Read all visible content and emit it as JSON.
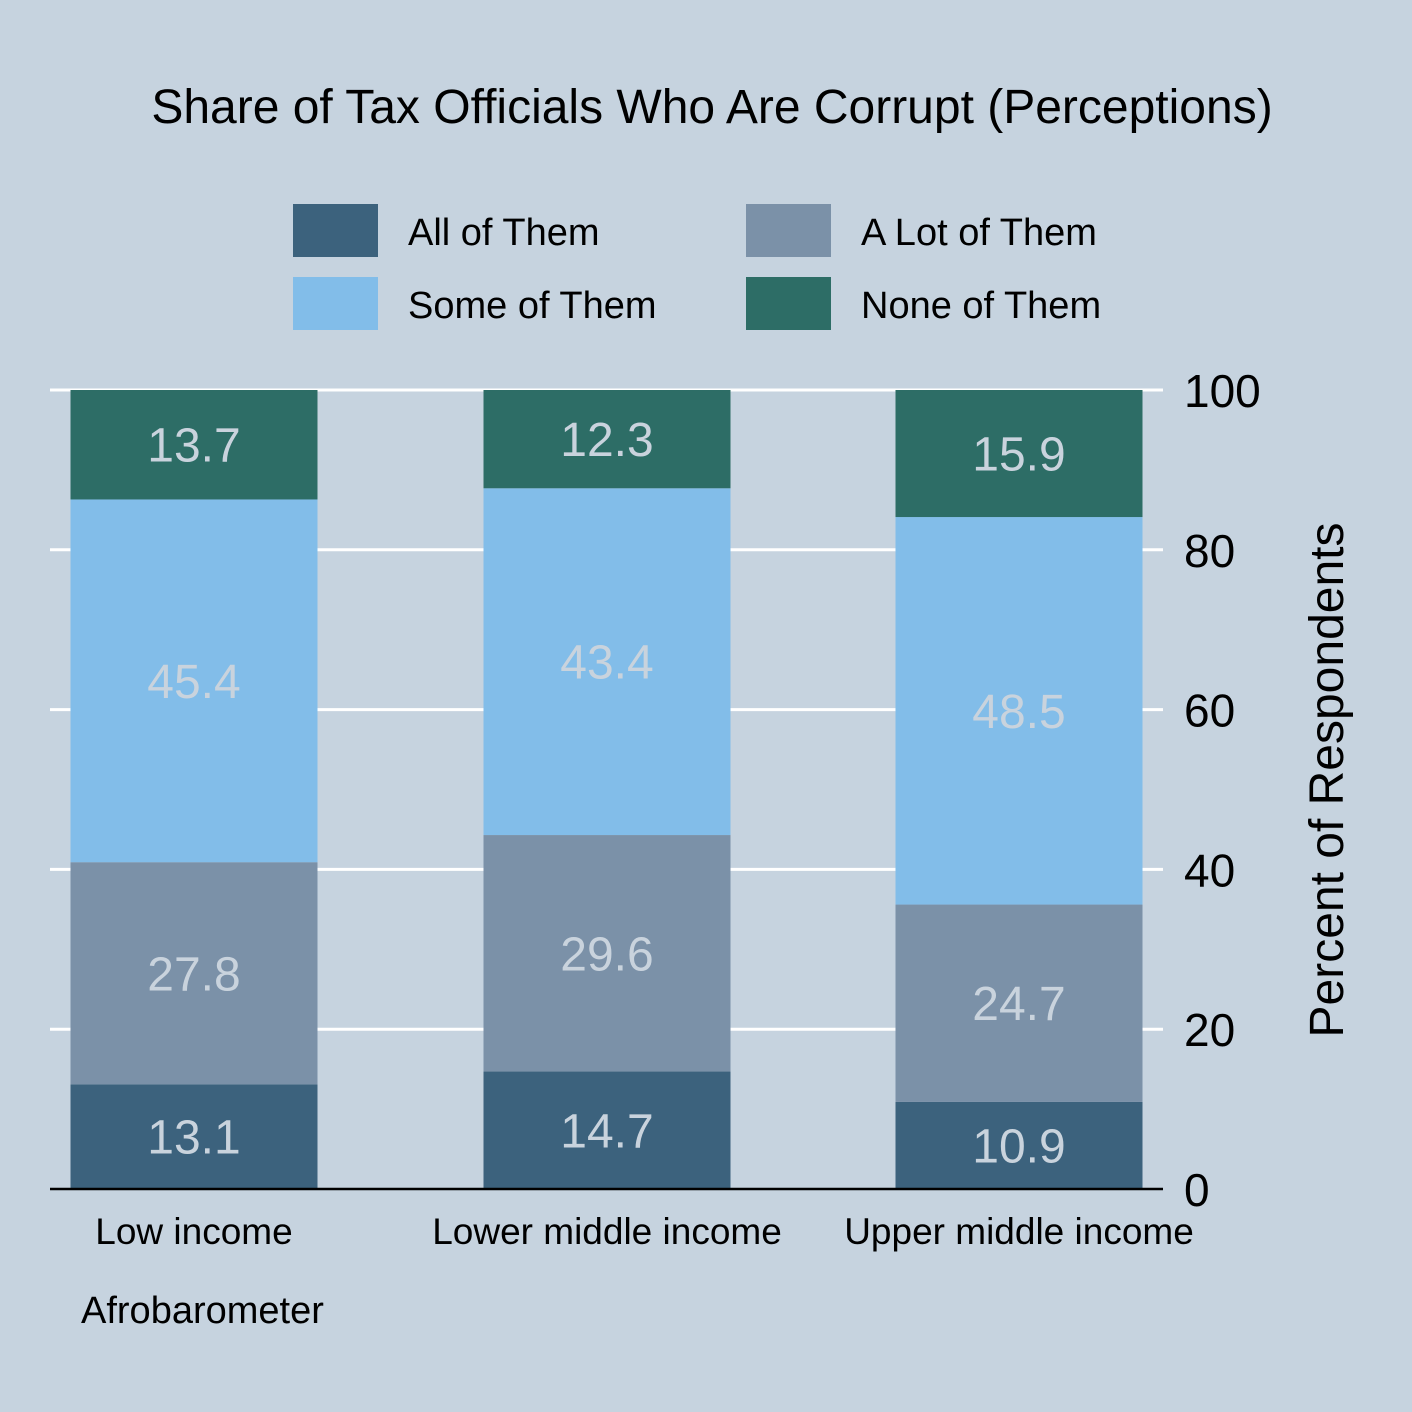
{
  "chart_data": {
    "type": "bar",
    "stacked": true,
    "title": "Share of Tax Officials Who Are Corrupt (Perceptions)",
    "categories": [
      "Low income",
      "Lower middle income",
      "Upper middle income"
    ],
    "series": [
      {
        "name": "All of Them",
        "values": [
          13.1,
          14.7,
          10.9
        ],
        "color": "#3c627d"
      },
      {
        "name": "A Lot of Them",
        "values": [
          27.8,
          29.6,
          24.7
        ],
        "color": "#7b91a8"
      },
      {
        "name": "Some of Them",
        "values": [
          45.4,
          43.4,
          48.5
        ],
        "color": "#82bde9"
      },
      {
        "name": "None of Them",
        "values": [
          13.7,
          12.3,
          15.9
        ],
        "color": "#2d6d66"
      }
    ],
    "ylabel": "Percent of Respondents",
    "xlabel": "",
    "ylim": [
      0,
      100
    ],
    "yticks": [
      0,
      20,
      40,
      60,
      80,
      100
    ],
    "y_axis_side": "right",
    "grid": true,
    "legend_position": "top",
    "note": "Afrobarometer"
  },
  "colors": {
    "background": "#c6d3df",
    "gridline": "#ffffff",
    "data_label": "#c9d3dd"
  }
}
